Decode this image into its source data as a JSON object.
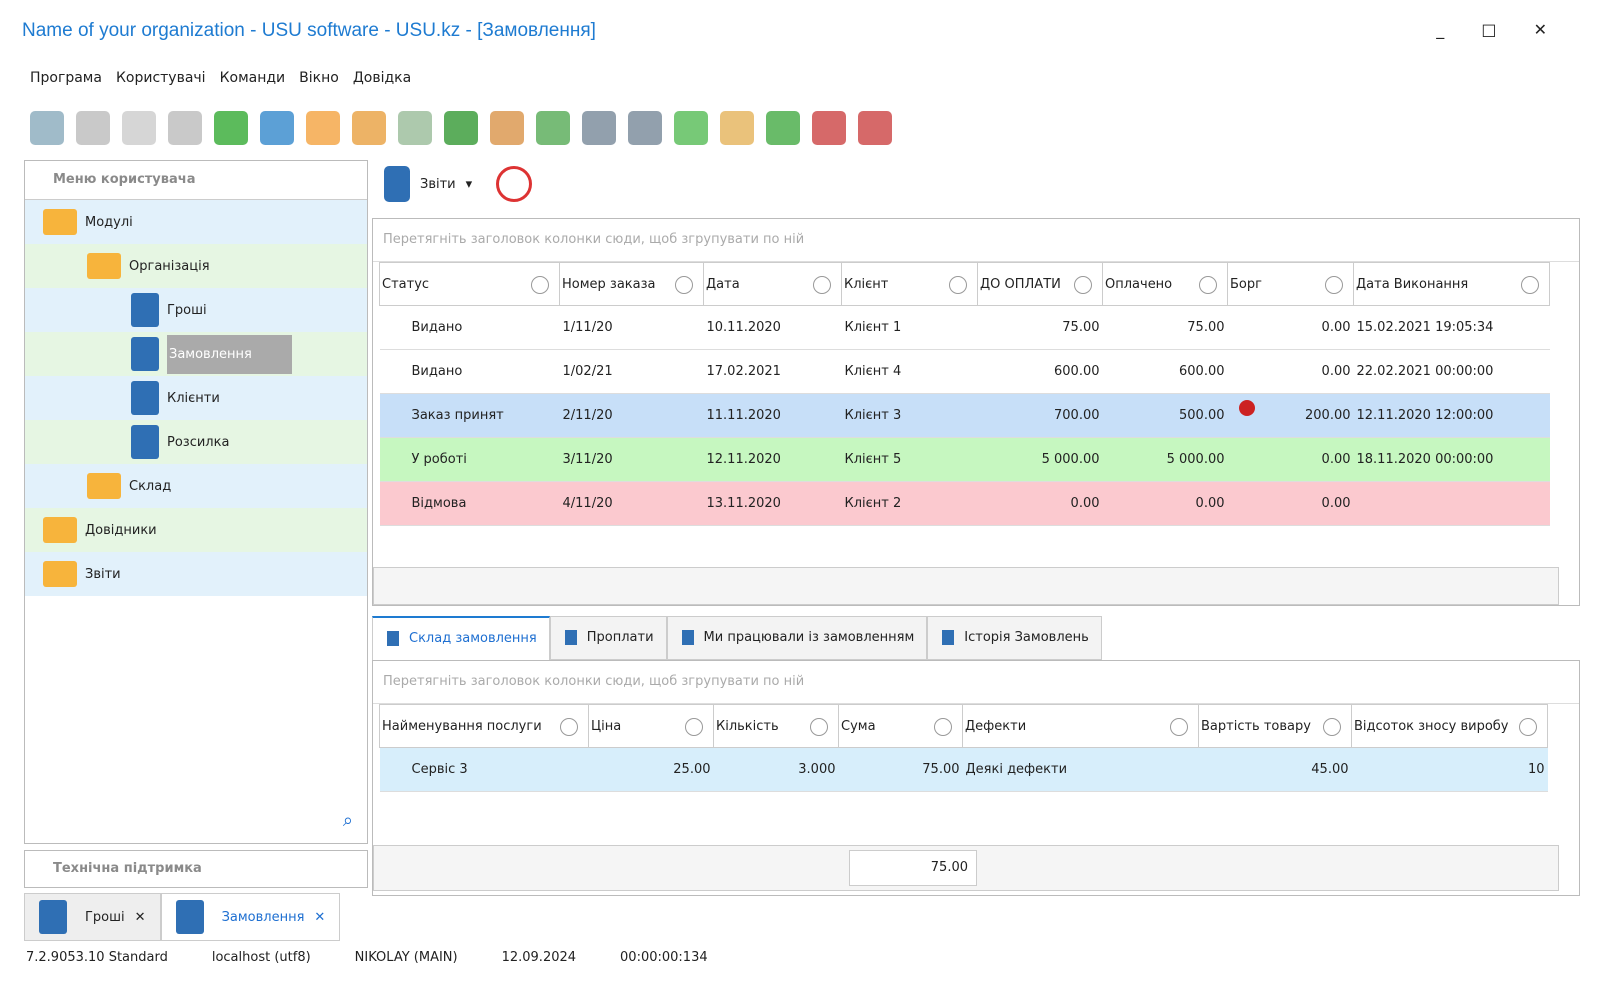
{
  "window": {
    "title": "Name of your organization - USU software - USU.kz - [Замовлення]"
  },
  "menu": [
    "Програма",
    "Користувачі",
    "Команди",
    "Вікно",
    "Довідка"
  ],
  "sidebar": {
    "title": "Меню користувача",
    "tree": [
      {
        "label": "Модулі",
        "children": [
          {
            "label": "Організація",
            "children": [
              {
                "label": "Гроші"
              },
              {
                "label": "Замовлення"
              },
              {
                "label": "Клієнти"
              },
              {
                "label": "Розсилка"
              }
            ]
          },
          {
            "label": "Склад"
          }
        ]
      },
      {
        "label": "Довідники"
      },
      {
        "label": "Звіти"
      }
    ],
    "support": "Технічна підтримка"
  },
  "reports_button": "Звіти",
  "orders": {
    "group_hint": "Перетягніть заголовок колонки сюди, щоб згрупувати по ній",
    "columns": [
      "Статус",
      "Номер заказа",
      "Дата",
      "Клієнт",
      "ДО ОПЛАТИ",
      "Оплачено",
      "Борг",
      "Дата Виконання"
    ],
    "rows": [
      [
        "Видано",
        "1/11/20",
        "10.11.2020",
        "Клієнт 1",
        "75.00",
        "75.00",
        "0.00",
        "15.02.2021 19:05:34"
      ],
      [
        "Видано",
        "1/02/21",
        "17.02.2021",
        "Клієнт 4",
        "600.00",
        "600.00",
        "0.00",
        "22.02.2021 00:00:00"
      ],
      [
        "Заказ принят",
        "2/11/20",
        "11.11.2020",
        "Клієнт 3",
        "700.00",
        "500.00",
        "200.00",
        "12.11.2020 12:00:00"
      ],
      [
        "У роботі",
        "3/11/20",
        "12.11.2020",
        "Клієнт 5",
        "5 000.00",
        "5 000.00",
        "0.00",
        "18.11.2020 00:00:00"
      ],
      [
        "Відмова",
        "4/11/20",
        "13.11.2020",
        "Клієнт 2",
        "0.00",
        "0.00",
        "0.00",
        null
      ]
    ]
  },
  "tabs": [
    "Склад замовлення",
    "Проплати",
    "Ми працювали із замовленням",
    "Історія Замовлень"
  ],
  "details": {
    "group_hint": "Перетягніть заголовок колонки сюди, щоб згрупувати по ній",
    "columns": [
      "Найменування послуги",
      "Ціна",
      "Кількість",
      "Сума",
      "Дефекти",
      "Вартість товару",
      "Відсоток зносу виробу"
    ],
    "rows": [
      [
        "Сервіс 3",
        "25.00",
        "3.000",
        "75.00",
        "Деякі дефекти",
        "45.00",
        "10"
      ]
    ],
    "total": "75.00"
  },
  "doc_tabs": [
    "Гроші",
    "Замовлення"
  ],
  "status": [
    "7.2.9053.10 Standard",
    "localhost (utf8)",
    "NIKOLAY (MAIN)",
    "12.09.2024",
    "00:00:00:134"
  ]
}
